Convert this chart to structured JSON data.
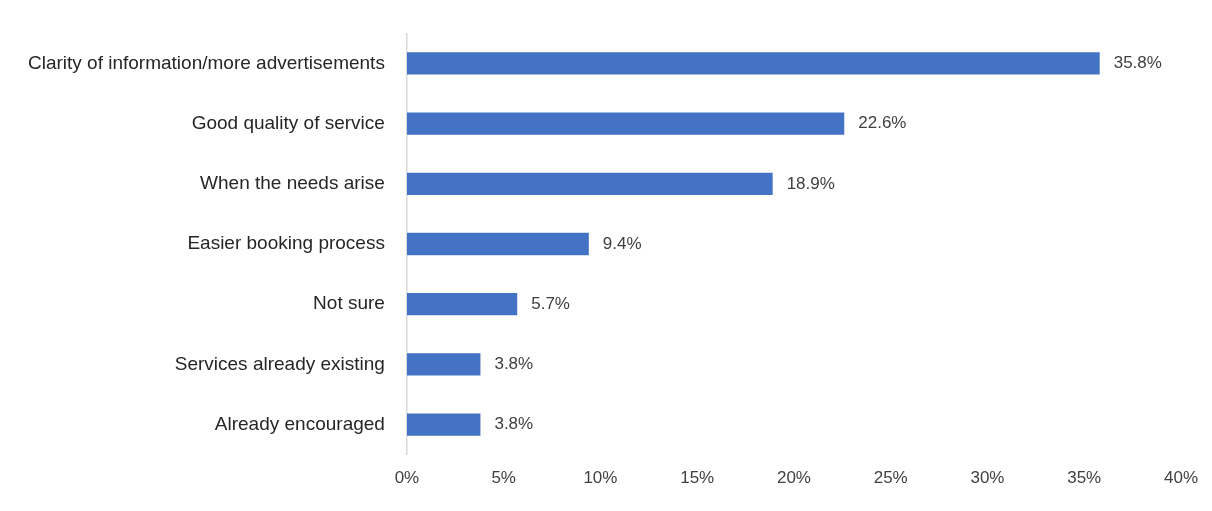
{
  "chart_data": {
    "type": "bar",
    "orientation": "horizontal",
    "categories": [
      "Clarity of information/more advertisements",
      "Good quality of service",
      "When the needs arise",
      "Easier booking process",
      "Not sure",
      "Services already existing",
      "Already encouraged"
    ],
    "values": [
      35.8,
      22.6,
      18.9,
      9.4,
      5.7,
      3.8,
      3.8
    ],
    "value_labels": [
      "35.8%",
      "22.6%",
      "18.9%",
      "9.4%",
      "5.7%",
      "3.8%",
      "3.8%"
    ],
    "color": "#4472c4",
    "xlim": [
      0,
      40
    ],
    "xticks": [
      {
        "value": 0,
        "label": "0%"
      },
      {
        "value": 5,
        "label": "5%"
      },
      {
        "value": 10,
        "label": "10%"
      },
      {
        "value": 15,
        "label": "15%"
      },
      {
        "value": 20,
        "label": "20%"
      },
      {
        "value": 25,
        "label": "25%"
      },
      {
        "value": 30,
        "label": "30%"
      },
      {
        "value": 35,
        "label": "35%"
      },
      {
        "value": 40,
        "label": "40%"
      }
    ]
  }
}
